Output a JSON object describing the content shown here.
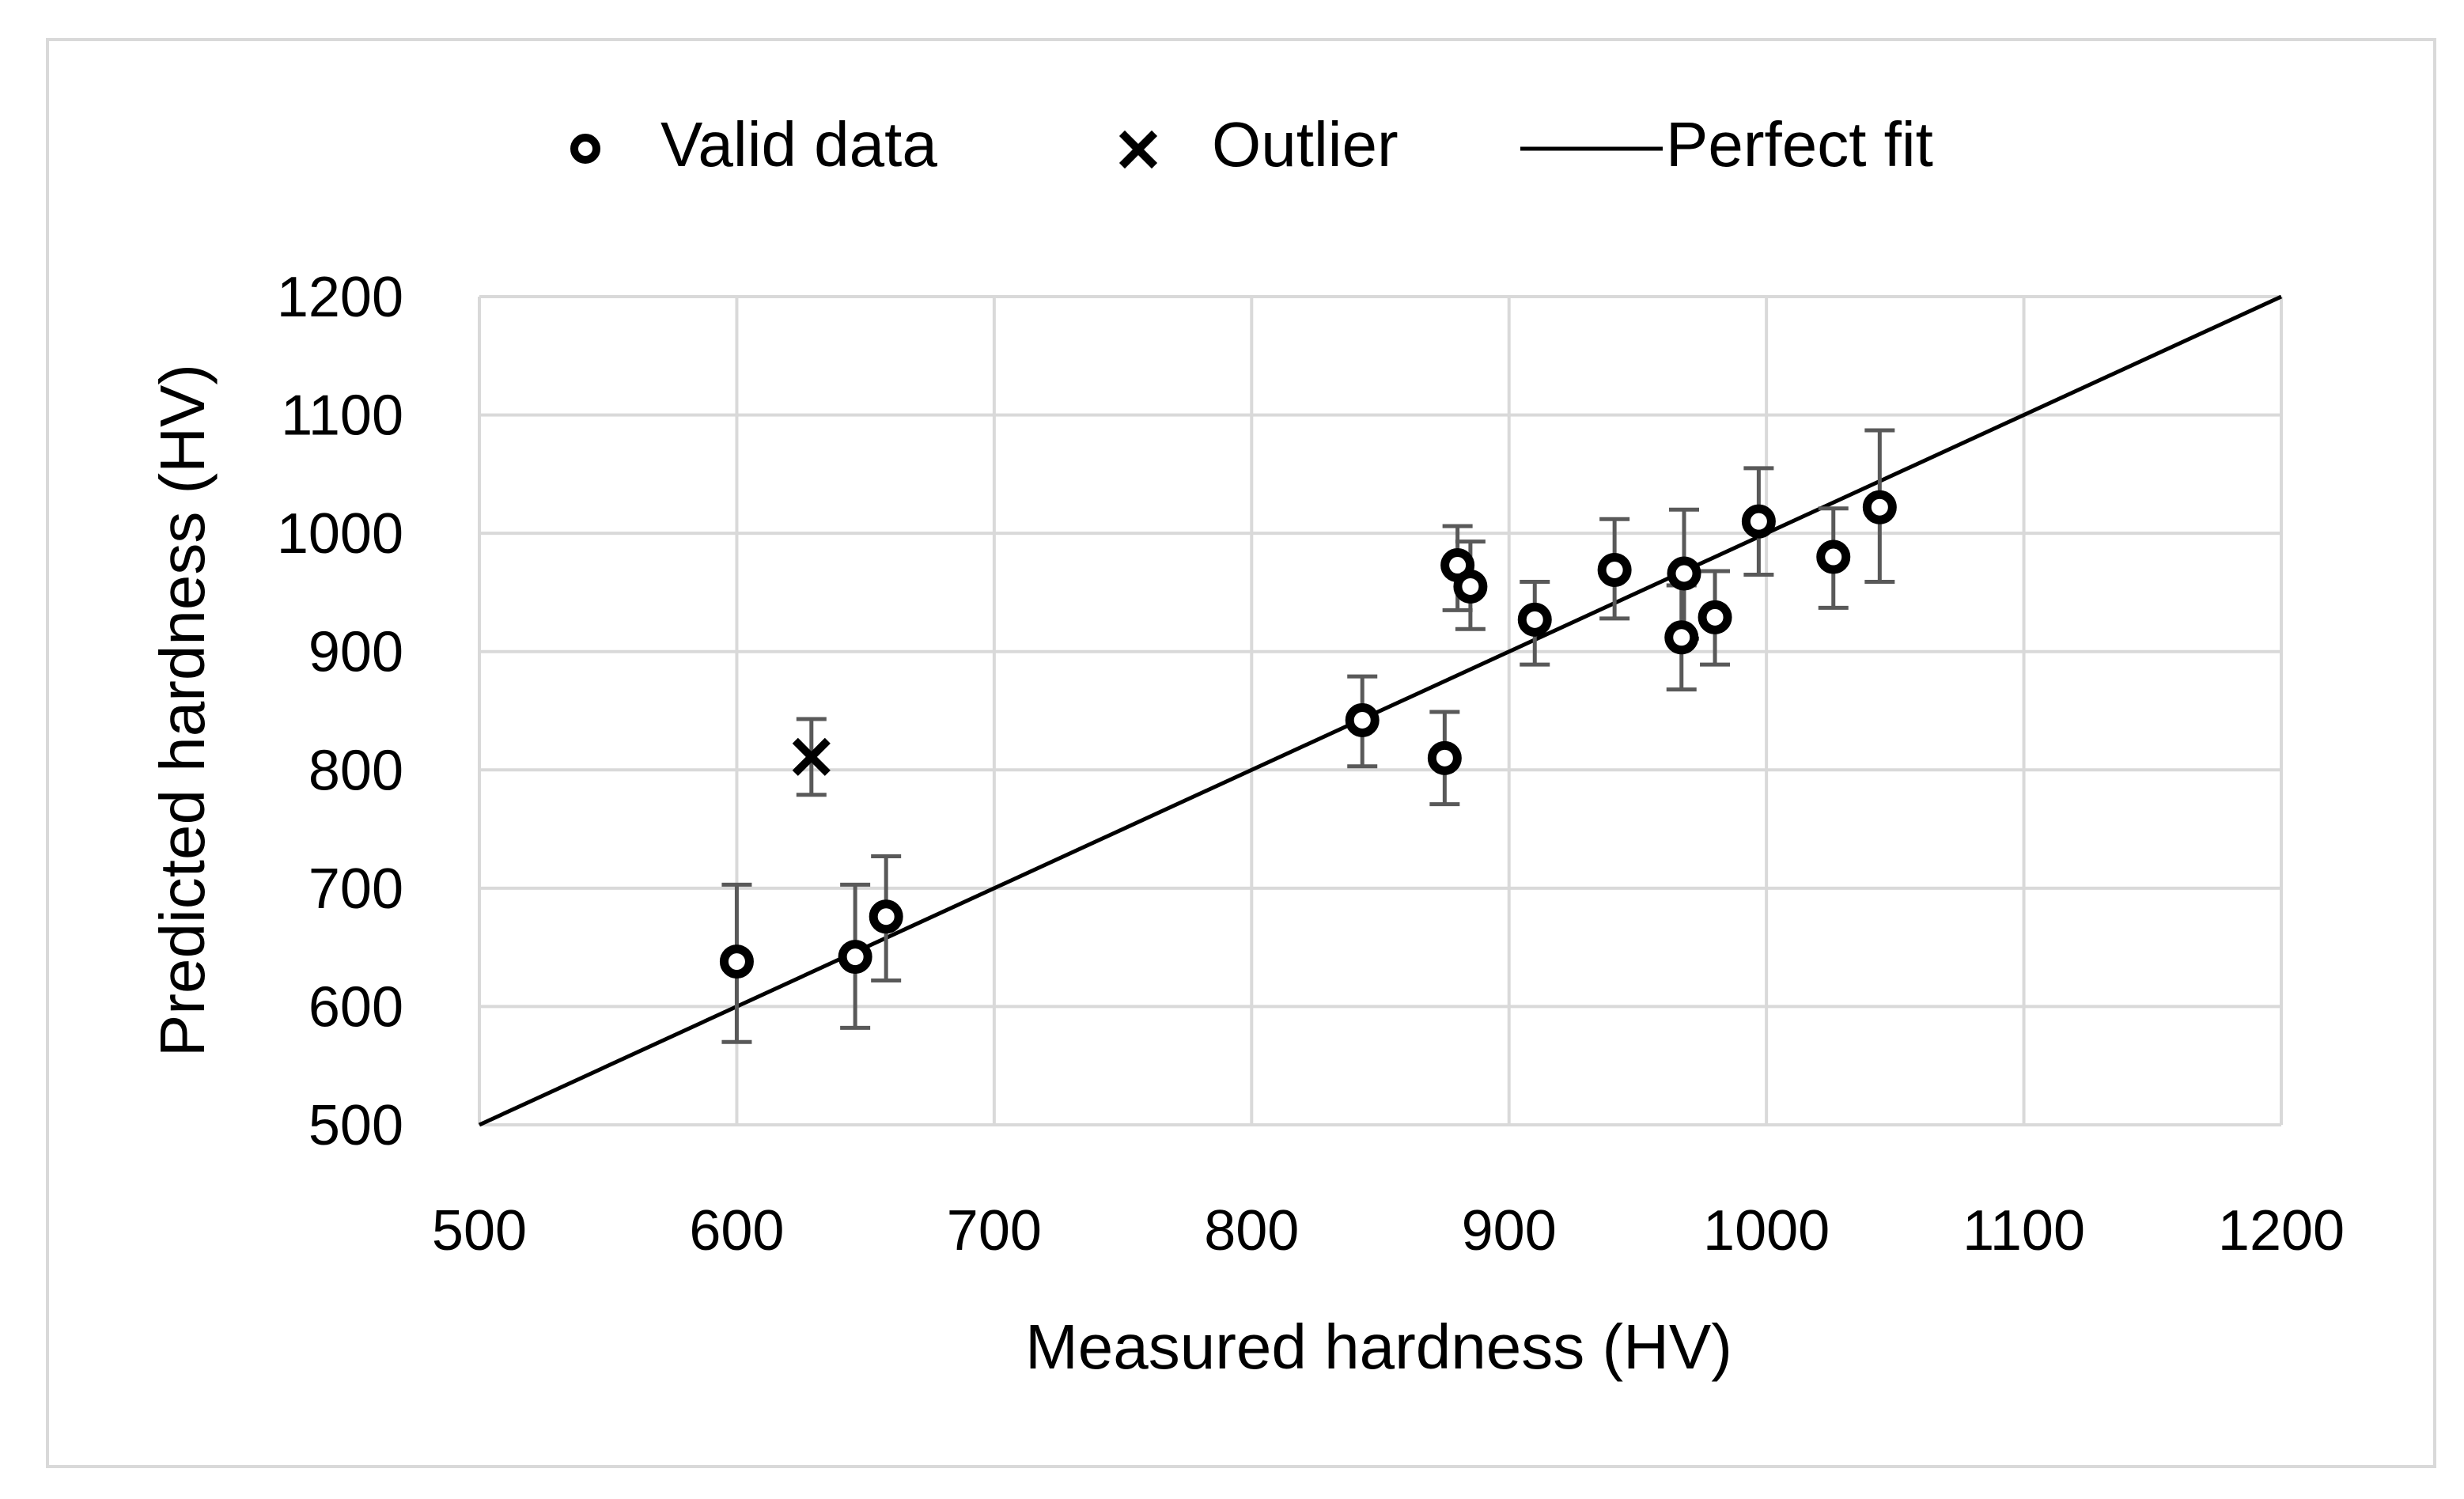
{
  "chart_data": {
    "type": "scatter",
    "xlabel": "Measured hardness (HV)",
    "ylabel": "Predicted hardness (HV)",
    "xlim": [
      500,
      1200
    ],
    "ylim": [
      500,
      1200
    ],
    "x_ticks": [
      500,
      600,
      700,
      800,
      900,
      1000,
      1100,
      1200
    ],
    "y_ticks": [
      500,
      600,
      700,
      800,
      900,
      1000,
      1100,
      1200
    ],
    "grid": true,
    "legend_position": "top",
    "colors": {
      "grid": "#d9d9d9",
      "marker": "#000000",
      "error_bar": "#595959",
      "line": "#000000",
      "frame": "#d9d9d9"
    },
    "legend": [
      {
        "label": "Valid data",
        "marker": "circle"
      },
      {
        "label": "Outlier",
        "marker": "x"
      },
      {
        "label": "Perfect fit",
        "marker": "line"
      }
    ],
    "series": [
      {
        "name": "Valid data",
        "marker": "circle",
        "points": [
          {
            "x": 600,
            "y": 638,
            "err_low": 570,
            "err_high": 703
          },
          {
            "x": 646,
            "y": 642,
            "err_low": 582,
            "err_high": 703
          },
          {
            "x": 658,
            "y": 676,
            "err_low": 622,
            "err_high": 727
          },
          {
            "x": 843,
            "y": 842,
            "err_low": 803,
            "err_high": 879
          },
          {
            "x": 875,
            "y": 810,
            "err_low": 771,
            "err_high": 849
          },
          {
            "x": 880,
            "y": 973,
            "err_low": 935,
            "err_high": 1006
          },
          {
            "x": 885,
            "y": 955,
            "err_low": 919,
            "err_high": 993
          },
          {
            "x": 910,
            "y": 927,
            "err_low": 889,
            "err_high": 959
          },
          {
            "x": 941,
            "y": 969,
            "err_low": 928,
            "err_high": 1012
          },
          {
            "x": 967,
            "y": 912,
            "err_low": 868,
            "err_high": 956
          },
          {
            "x": 968,
            "y": 966,
            "err_low": 911,
            "err_high": 1020
          },
          {
            "x": 980,
            "y": 929,
            "err_low": 889,
            "err_high": 968
          },
          {
            "x": 997,
            "y": 1010,
            "err_low": 965,
            "err_high": 1055
          },
          {
            "x": 1026,
            "y": 980,
            "err_low": 937,
            "err_high": 1021
          },
          {
            "x": 1044,
            "y": 1022,
            "err_low": 959,
            "err_high": 1087
          }
        ]
      },
      {
        "name": "Outlier",
        "marker": "x",
        "points": [
          {
            "x": 629,
            "y": 811,
            "err_low": 779,
            "err_high": 843
          }
        ]
      },
      {
        "name": "Perfect fit",
        "type": "line",
        "points": [
          {
            "x": 500,
            "y": 500
          },
          {
            "x": 1200,
            "y": 1200
          }
        ]
      }
    ]
  }
}
